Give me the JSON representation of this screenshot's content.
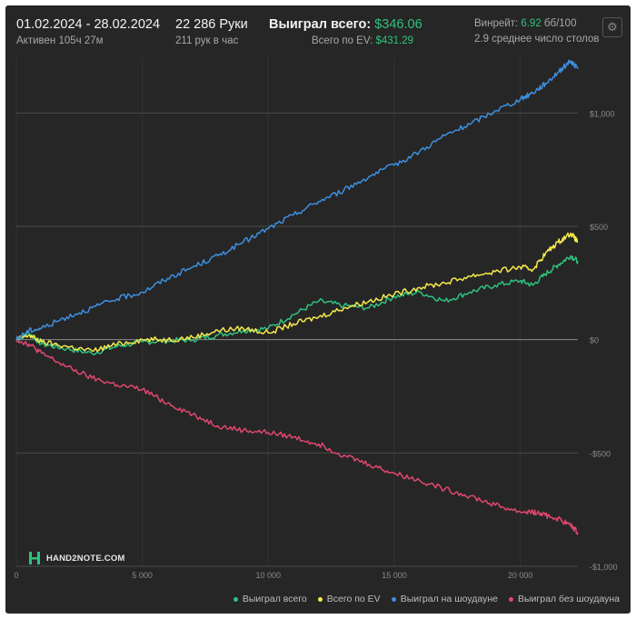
{
  "header": {
    "date_range": "01.02.2024 - 28.02.2024",
    "active_time": "Активен 105ч 27м",
    "hands": "22 286 Руки",
    "hands_per_hour": "211 рук в час",
    "won_total_label": "Выиграл всего:",
    "won_total_value": "$346.06",
    "ev_total_label": "Всего по EV:",
    "ev_total_value": "$431.29",
    "winrate_label": "Винрейт:",
    "winrate_value": "6.92",
    "winrate_unit": "бб/100",
    "avg_tables": "2.9 среднее число столов",
    "settings_icon": "gear-icon"
  },
  "logo": {
    "text": "HAND2NOTE.COM",
    "mark": "H"
  },
  "colors": {
    "background": "#262626",
    "grid": "#4a4a4a",
    "won_total": "#2ec27e",
    "ev": "#f4e94c",
    "showdown": "#3d8fe0",
    "non_showdown": "#e0476e",
    "money_green": "#2ec27e"
  },
  "chart_data": {
    "type": "line",
    "x_axis": {
      "range": [
        0,
        22286
      ],
      "ticks": [
        0,
        5000,
        10000,
        15000,
        20000
      ],
      "tick_labels": [
        "0",
        "5 000",
        "10 000",
        "15 000",
        "20 000"
      ]
    },
    "y_axis": {
      "range": [
        -1000,
        1250
      ],
      "ticks": [
        1000,
        500,
        0,
        -500,
        -1000
      ],
      "tick_labels": [
        "$1,000",
        "$500",
        "$0",
        "-$500",
        "-$1,000"
      ],
      "position": "right"
    },
    "grid": true,
    "legend_position": "bottom-right",
    "series": [
      {
        "name": "Выиграл всего",
        "color": "#2ec27e",
        "x": [
          0,
          500,
          1000,
          2000,
          3000,
          4000,
          5000,
          6000,
          7000,
          8000,
          9000,
          10000,
          11000,
          12000,
          13000,
          14000,
          15000,
          16000,
          17000,
          18000,
          19000,
          20000,
          20500,
          21000,
          21500,
          22000,
          22286
        ],
        "y": [
          0,
          30,
          -20,
          -40,
          -60,
          -30,
          -10,
          -5,
          0,
          20,
          40,
          50,
          110,
          170,
          150,
          140,
          190,
          210,
          170,
          210,
          240,
          260,
          240,
          290,
          330,
          370,
          346
        ]
      },
      {
        "name": "Всего по EV",
        "color": "#f4e94c",
        "x": [
          0,
          500,
          1000,
          2000,
          3000,
          4000,
          5000,
          6000,
          7000,
          8000,
          9000,
          10000,
          11000,
          12000,
          13000,
          14000,
          15000,
          16000,
          17000,
          18000,
          19000,
          20000,
          20500,
          21000,
          21500,
          22000,
          22286
        ],
        "y": [
          0,
          20,
          -10,
          -30,
          -50,
          -20,
          0,
          0,
          10,
          40,
          50,
          30,
          70,
          100,
          140,
          170,
          200,
          230,
          250,
          280,
          300,
          320,
          310,
          380,
          430,
          470,
          431
        ]
      },
      {
        "name": "Выиграл на шоудауне",
        "color": "#3d8fe0",
        "x": [
          0,
          500,
          1000,
          2000,
          3000,
          4000,
          5000,
          6000,
          7000,
          8000,
          9000,
          10000,
          11000,
          12000,
          13000,
          14000,
          15000,
          16000,
          17000,
          18000,
          19000,
          20000,
          20500,
          21000,
          21500,
          22000,
          22286
        ],
        "y": [
          0,
          40,
          50,
          100,
          140,
          180,
          210,
          270,
          320,
          370,
          430,
          490,
          550,
          610,
          660,
          720,
          770,
          830,
          900,
          950,
          1010,
          1060,
          1090,
          1130,
          1180,
          1230,
          1195
        ]
      },
      {
        "name": "Выиграл без шоудауна",
        "color": "#e0476e",
        "x": [
          0,
          500,
          1000,
          2000,
          3000,
          4000,
          5000,
          6000,
          7000,
          8000,
          9000,
          10000,
          11000,
          12000,
          13000,
          14000,
          15000,
          16000,
          17000,
          18000,
          19000,
          20000,
          20500,
          21000,
          21500,
          22000,
          22286
        ],
        "y": [
          0,
          -20,
          -60,
          -120,
          -170,
          -200,
          -220,
          -280,
          -330,
          -380,
          -400,
          -410,
          -430,
          -460,
          -510,
          -550,
          -590,
          -620,
          -660,
          -690,
          -730,
          -760,
          -760,
          -775,
          -790,
          -820,
          -850
        ]
      }
    ]
  }
}
